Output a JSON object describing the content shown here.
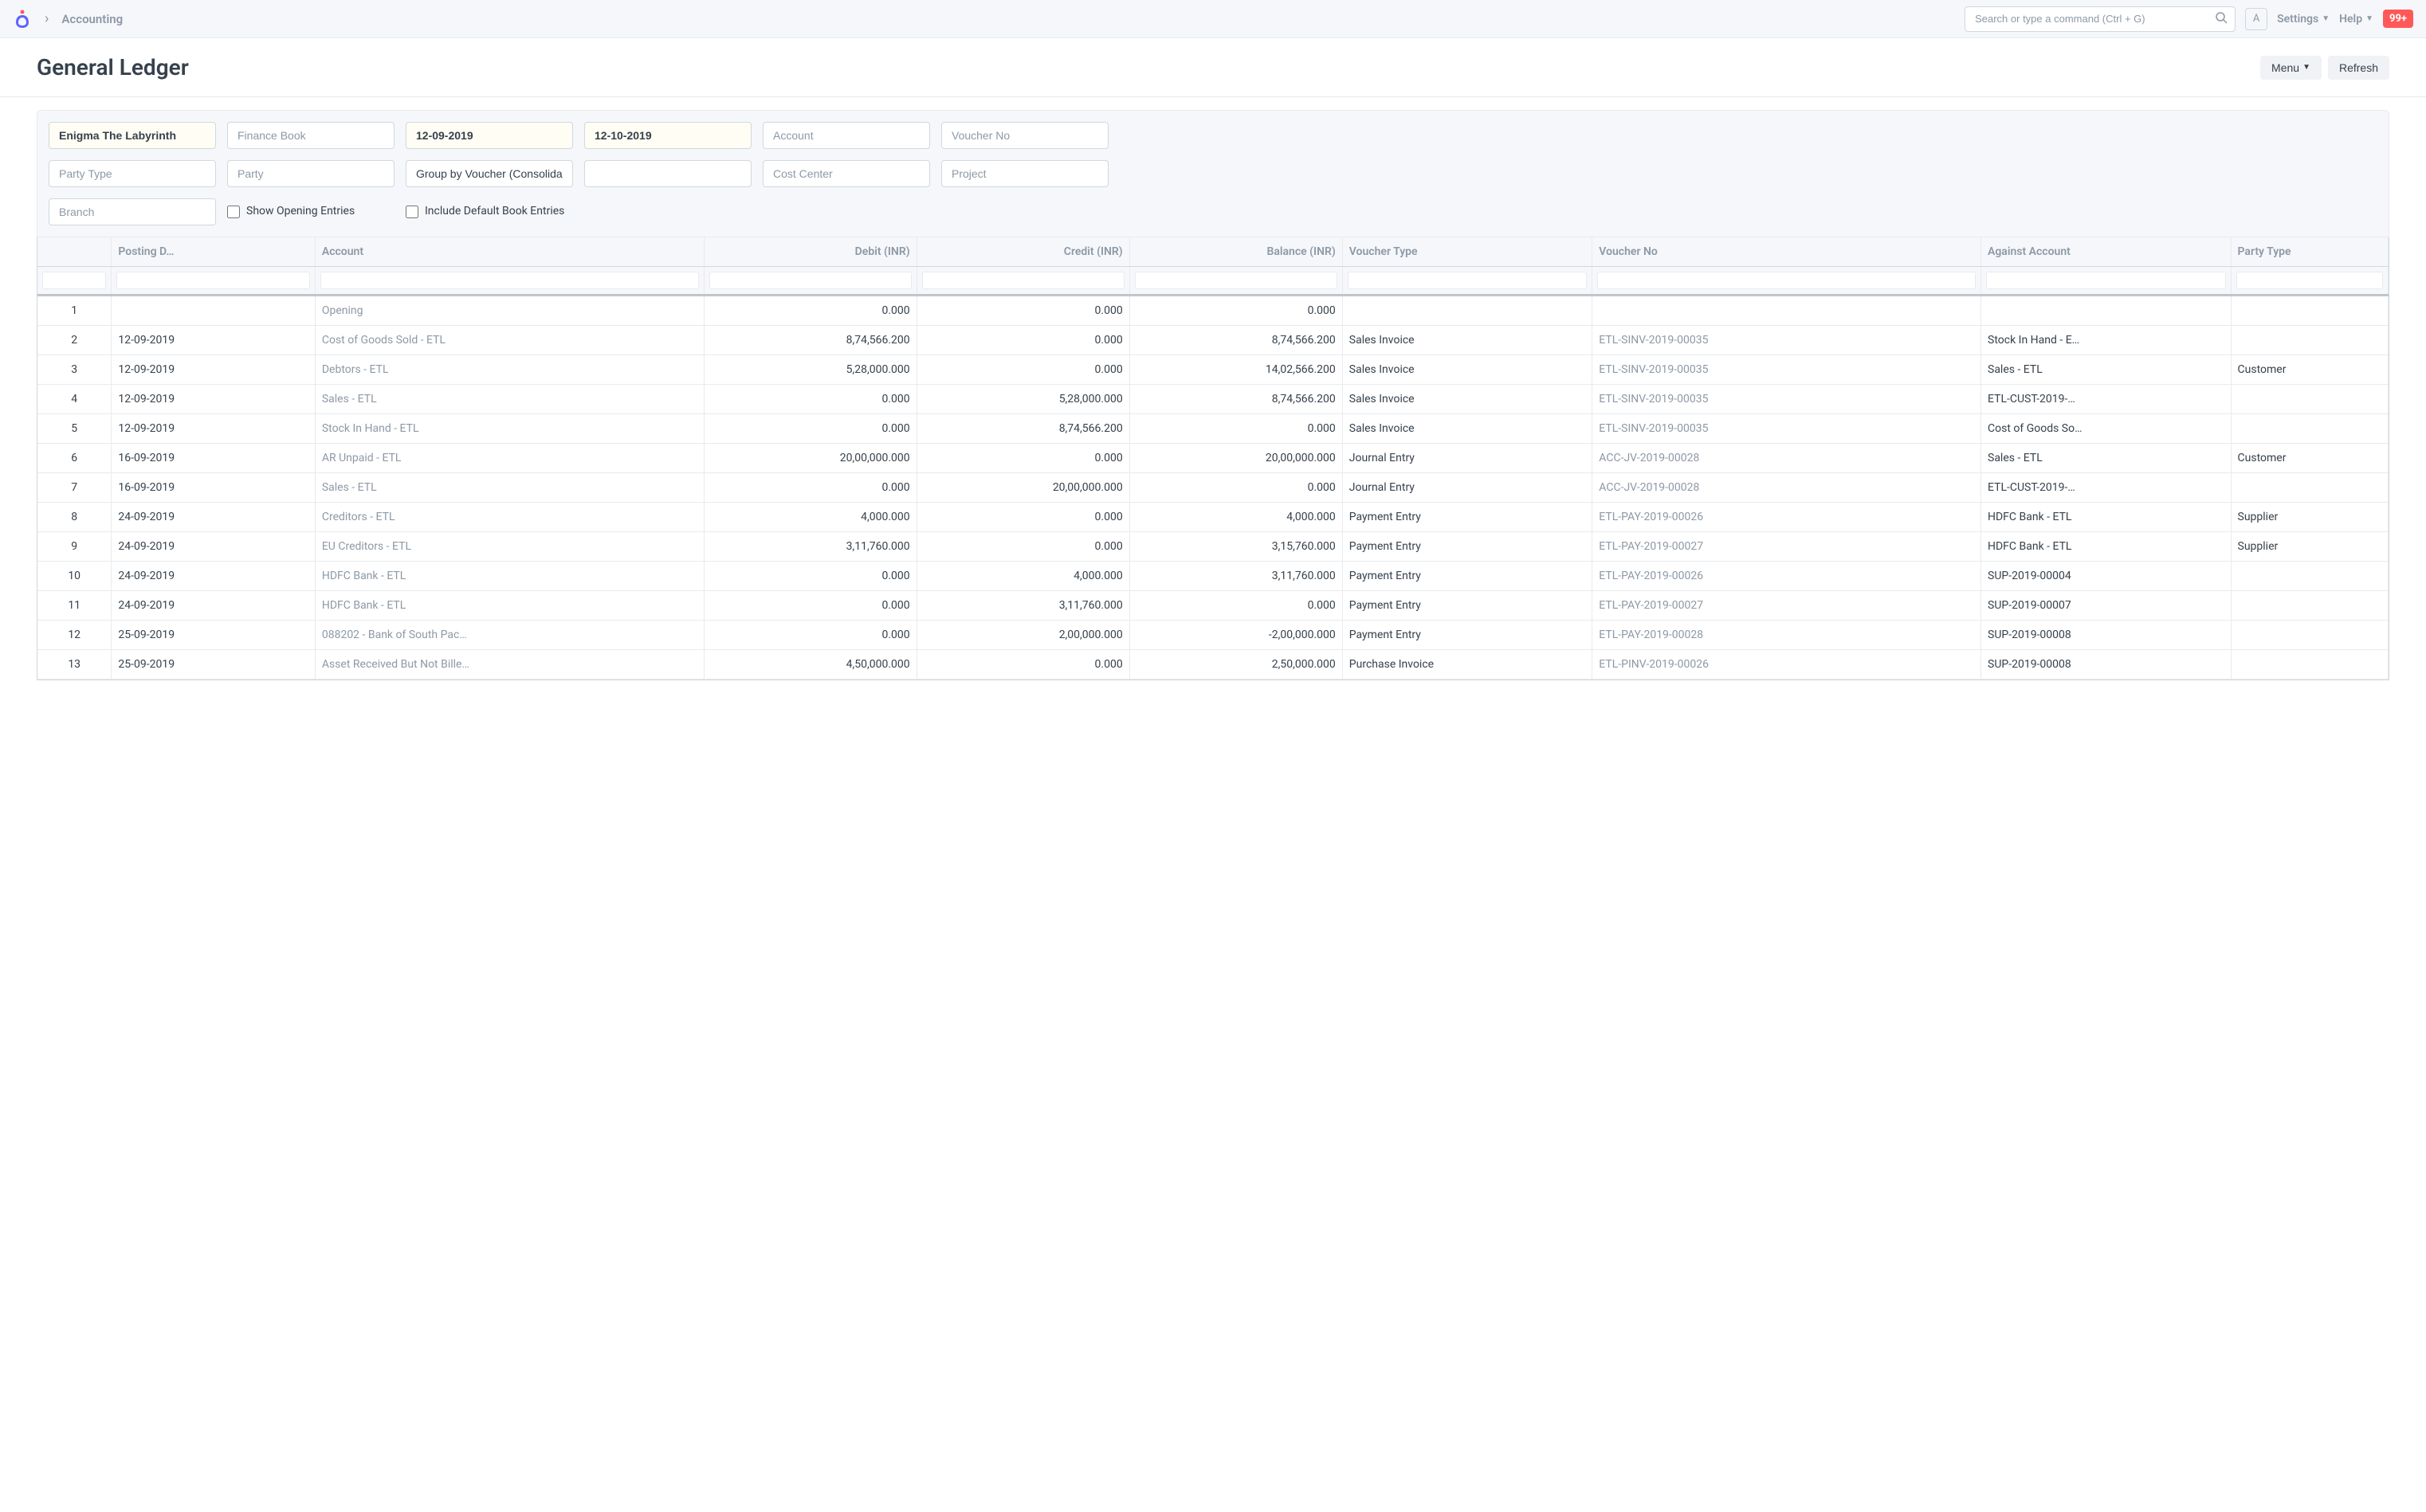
{
  "navbar": {
    "breadcrumb": "Accounting",
    "search_placeholder": "Search or type a command (Ctrl + G)",
    "user_initial": "A",
    "settings_label": "Settings",
    "help_label": "Help",
    "notification_badge": "99+"
  },
  "page": {
    "title": "General Ledger",
    "menu_btn": "Menu",
    "refresh_btn": "Refresh"
  },
  "filters": {
    "company": "Enigma The Labyrinth",
    "finance_book_ph": "Finance Book",
    "from_date": "12-09-2019",
    "to_date": "12-10-2019",
    "account_ph": "Account",
    "voucher_no_ph": "Voucher No",
    "party_type_ph": "Party Type",
    "party_ph": "Party",
    "group_by": "Group by Voucher (Consolidated)",
    "cost_center_ph": "Cost Center",
    "project_ph": "Project",
    "branch_ph": "Branch",
    "show_opening_label": "Show Opening Entries",
    "include_default_label": "Include Default Book Entries"
  },
  "columns": [
    "",
    "Posting D…",
    "Account",
    "Debit (INR)",
    "Credit (INR)",
    "Balance (INR)",
    "Voucher Type",
    "Voucher No",
    "Against Account",
    "Party Type"
  ],
  "rows": [
    {
      "idx": "1",
      "date": "",
      "account": "Opening",
      "debit": "0.000",
      "credit": "0.000",
      "balance": "0.000",
      "vtype": "",
      "vno": "",
      "against": "",
      "party": ""
    },
    {
      "idx": "2",
      "date": "12-09-2019",
      "account": "Cost of Goods Sold - ETL",
      "debit": "8,74,566.200",
      "credit": "0.000",
      "balance": "8,74,566.200",
      "vtype": "Sales Invoice",
      "vno": "ETL-SINV-2019-00035",
      "against": "Stock In Hand - E…",
      "party": ""
    },
    {
      "idx": "3",
      "date": "12-09-2019",
      "account": "Debtors - ETL",
      "debit": "5,28,000.000",
      "credit": "0.000",
      "balance": "14,02,566.200",
      "vtype": "Sales Invoice",
      "vno": "ETL-SINV-2019-00035",
      "against": "Sales - ETL",
      "party": "Customer"
    },
    {
      "idx": "4",
      "date": "12-09-2019",
      "account": "Sales - ETL",
      "debit": "0.000",
      "credit": "5,28,000.000",
      "balance": "8,74,566.200",
      "vtype": "Sales Invoice",
      "vno": "ETL-SINV-2019-00035",
      "against": "ETL-CUST-2019-…",
      "party": ""
    },
    {
      "idx": "5",
      "date": "12-09-2019",
      "account": "Stock In Hand - ETL",
      "debit": "0.000",
      "credit": "8,74,566.200",
      "balance": "0.000",
      "vtype": "Sales Invoice",
      "vno": "ETL-SINV-2019-00035",
      "against": "Cost of Goods So…",
      "party": ""
    },
    {
      "idx": "6",
      "date": "16-09-2019",
      "account": "AR Unpaid - ETL",
      "debit": "20,00,000.000",
      "credit": "0.000",
      "balance": "20,00,000.000",
      "vtype": "Journal Entry",
      "vno": "ACC-JV-2019-00028",
      "against": "Sales - ETL",
      "party": "Customer"
    },
    {
      "idx": "7",
      "date": "16-09-2019",
      "account": "Sales - ETL",
      "debit": "0.000",
      "credit": "20,00,000.000",
      "balance": "0.000",
      "vtype": "Journal Entry",
      "vno": "ACC-JV-2019-00028",
      "against": "ETL-CUST-2019-…",
      "party": ""
    },
    {
      "idx": "8",
      "date": "24-09-2019",
      "account": "Creditors - ETL",
      "debit": "4,000.000",
      "credit": "0.000",
      "balance": "4,000.000",
      "vtype": "Payment Entry",
      "vno": "ETL-PAY-2019-00026",
      "against": "HDFC Bank - ETL",
      "party": "Supplier"
    },
    {
      "idx": "9",
      "date": "24-09-2019",
      "account": "EU Creditors - ETL",
      "debit": "3,11,760.000",
      "credit": "0.000",
      "balance": "3,15,760.000",
      "vtype": "Payment Entry",
      "vno": "ETL-PAY-2019-00027",
      "against": "HDFC Bank - ETL",
      "party": "Supplier"
    },
    {
      "idx": "10",
      "date": "24-09-2019",
      "account": "HDFC Bank - ETL",
      "debit": "0.000",
      "credit": "4,000.000",
      "balance": "3,11,760.000",
      "vtype": "Payment Entry",
      "vno": "ETL-PAY-2019-00026",
      "against": "SUP-2019-00004",
      "party": ""
    },
    {
      "idx": "11",
      "date": "24-09-2019",
      "account": "HDFC Bank - ETL",
      "debit": "0.000",
      "credit": "3,11,760.000",
      "balance": "0.000",
      "vtype": "Payment Entry",
      "vno": "ETL-PAY-2019-00027",
      "against": "SUP-2019-00007",
      "party": ""
    },
    {
      "idx": "12",
      "date": "25-09-2019",
      "account": "088202 - Bank of South Pac…",
      "debit": "0.000",
      "credit": "2,00,000.000",
      "balance": "-2,00,000.000",
      "vtype": "Payment Entry",
      "vno": "ETL-PAY-2019-00028",
      "against": "SUP-2019-00008",
      "party": ""
    },
    {
      "idx": "13",
      "date": "25-09-2019",
      "account": "Asset Received But Not Bille…",
      "debit": "4,50,000.000",
      "credit": "0.000",
      "balance": "2,50,000.000",
      "vtype": "Purchase Invoice",
      "vno": "ETL-PINV-2019-00026",
      "against": "SUP-2019-00008",
      "party": ""
    }
  ]
}
